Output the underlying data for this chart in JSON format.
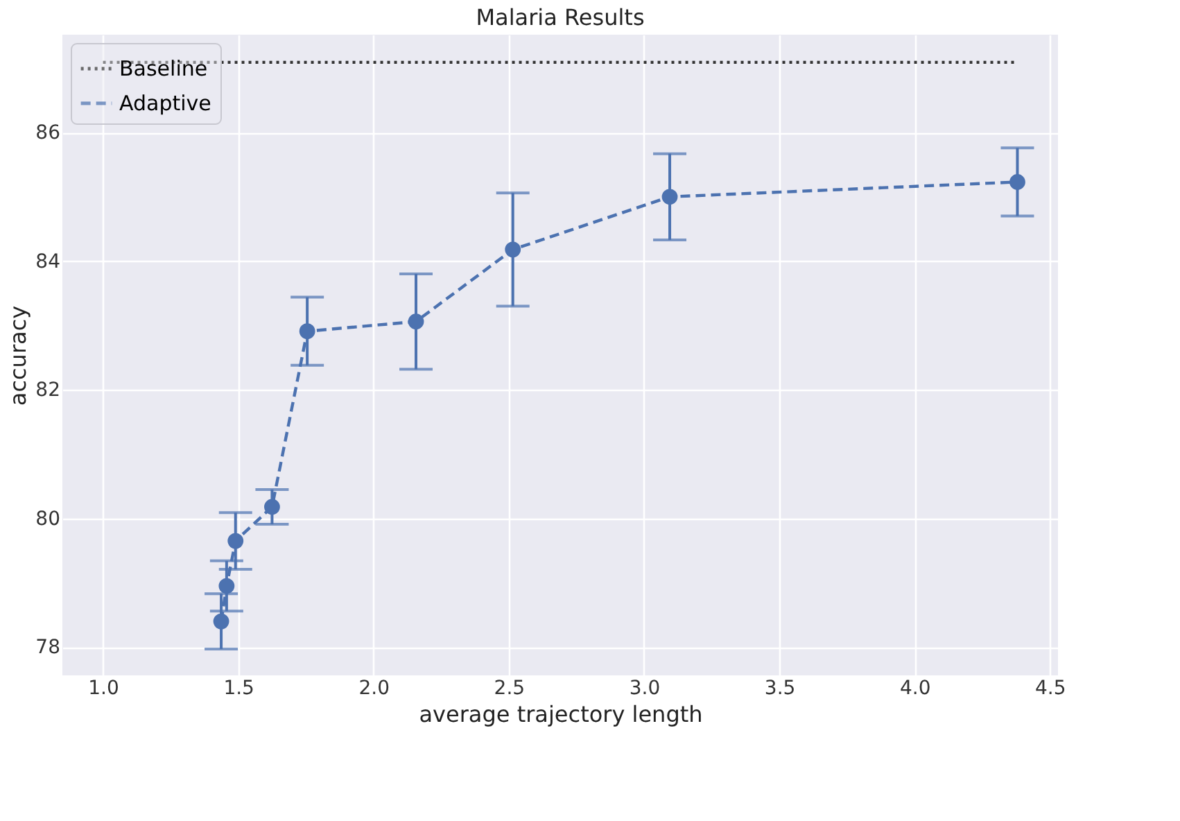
{
  "chart_data": {
    "type": "line",
    "title": "Malaria Results",
    "xlabel": "average trajectory length",
    "ylabel": "accuracy",
    "xlim": [
      0.85,
      4.53
    ],
    "ylim": [
      77.56,
      87.52
    ],
    "xticks": [
      {
        "value": 1.0,
        "label": "1.0"
      },
      1.5,
      {
        "value": 2.0,
        "label": "2.0"
      },
      2.5,
      {
        "value": 3.0,
        "label": "3.0"
      },
      3.5,
      {
        "value": 4.0,
        "label": "4.0"
      },
      4.5
    ],
    "yticks": [
      78,
      80,
      82,
      84,
      86
    ],
    "grid": true,
    "legend": "top left",
    "series": [
      {
        "name": "Baseline",
        "color": "#333333",
        "x": [
          1.0,
          4.38
        ],
        "values": [
          87.09,
          87.09
        ],
        "line_style": "dotted",
        "marker": "none"
      },
      {
        "name": "Adaptive",
        "color": "#4c72b0",
        "x": [
          1.437,
          1.457,
          1.49,
          1.625,
          1.755,
          2.157,
          2.515,
          3.095,
          4.38
        ],
        "values": [
          78.4,
          78.95,
          79.65,
          80.18,
          82.91,
          83.06,
          84.18,
          85.0,
          85.23
        ],
        "errors": [
          0.43,
          0.39,
          0.44,
          0.27,
          0.53,
          0.74,
          0.88,
          0.67,
          0.53
        ],
        "line_style": "dashed",
        "marker": "circle"
      }
    ]
  }
}
